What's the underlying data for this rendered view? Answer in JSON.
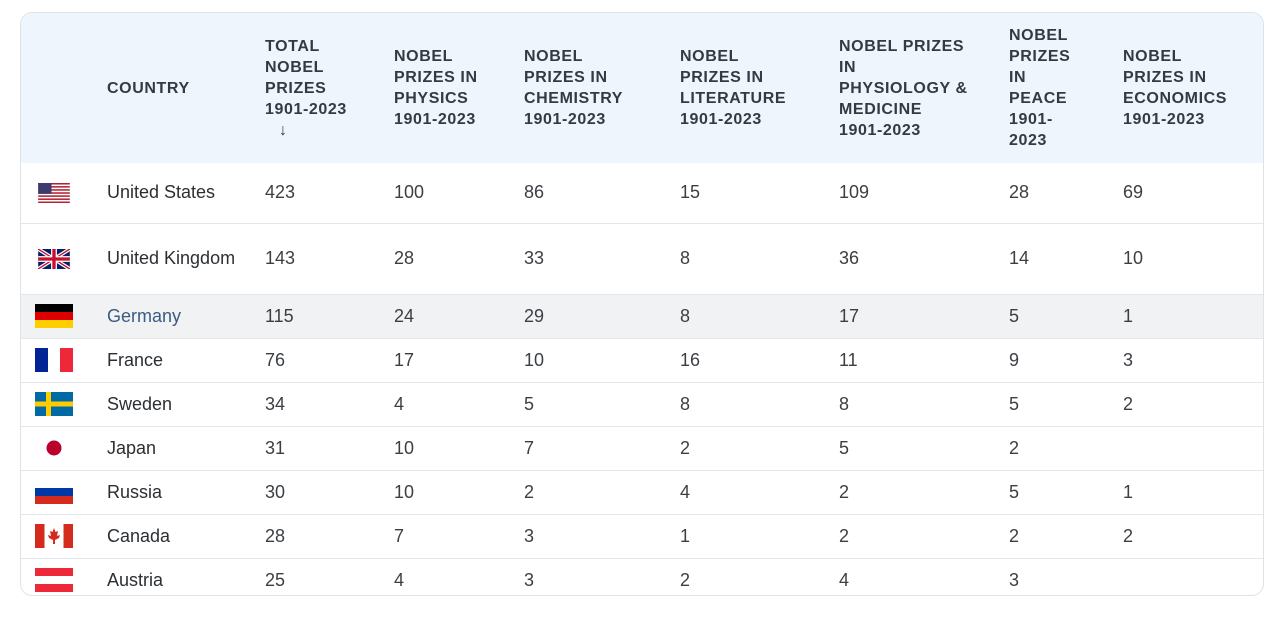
{
  "table": {
    "headers": {
      "country": "COUNTRY",
      "total": "TOTAL NOBEL PRIZES 1901-2023",
      "total_sort_icon": "arrow-down-icon",
      "physics": "NOBEL PRIZES IN PHYSICS 1901-2023",
      "chemistry": "NOBEL PRIZES IN CHEMISTRY 1901-2023",
      "literature": "NOBEL PRIZES IN LITERATURE 1901-2023",
      "medicine": "NOBEL PRIZES IN PHYSIOLOGY & MEDICINE 1901-2023",
      "peace": "NOBEL PRIZES IN PEACE 1901-2023",
      "economics": "NOBEL PRIZES IN ECONOMICS 1901-2023"
    },
    "rows": [
      {
        "flag": "us-flag-icon",
        "country": "United States",
        "total": "423",
        "physics": "100",
        "chemistry": "86",
        "literature": "15",
        "medicine": "109",
        "peace": "28",
        "economics": "69"
      },
      {
        "flag": "uk-flag-icon",
        "country": "United Kingdom",
        "total": "143",
        "physics": "28",
        "chemistry": "33",
        "literature": "8",
        "medicine": "36",
        "peace": "14",
        "economics": "10"
      },
      {
        "flag": "germany-flag-icon",
        "country": "Germany",
        "total": "115",
        "physics": "24",
        "chemistry": "29",
        "literature": "8",
        "medicine": "17",
        "peace": "5",
        "economics": "1"
      },
      {
        "flag": "france-flag-icon",
        "country": "France",
        "total": "76",
        "physics": "17",
        "chemistry": "10",
        "literature": "16",
        "medicine": "11",
        "peace": "9",
        "economics": "3"
      },
      {
        "flag": "sweden-flag-icon",
        "country": "Sweden",
        "total": "34",
        "physics": "4",
        "chemistry": "5",
        "literature": "8",
        "medicine": "8",
        "peace": "5",
        "economics": "2"
      },
      {
        "flag": "japan-flag-icon",
        "country": "Japan",
        "total": "31",
        "physics": "10",
        "chemistry": "7",
        "literature": "2",
        "medicine": "5",
        "peace": "2",
        "economics": ""
      },
      {
        "flag": "russia-flag-icon",
        "country": "Russia",
        "total": "30",
        "physics": "10",
        "chemistry": "2",
        "literature": "4",
        "medicine": "2",
        "peace": "5",
        "economics": "1"
      },
      {
        "flag": "canada-flag-icon",
        "country": "Canada",
        "total": "28",
        "physics": "7",
        "chemistry": "3",
        "literature": "1",
        "medicine": "2",
        "peace": "2",
        "economics": "2"
      },
      {
        "flag": "austria-flag-icon",
        "country": "Austria",
        "total": "25",
        "physics": "4",
        "chemistry": "3",
        "literature": "2",
        "medicine": "4",
        "peace": "3",
        "economics": ""
      }
    ],
    "highlight_color": "#f1f2f4",
    "link_color": "#3b5b80",
    "header_bg": "#eef5fc"
  }
}
